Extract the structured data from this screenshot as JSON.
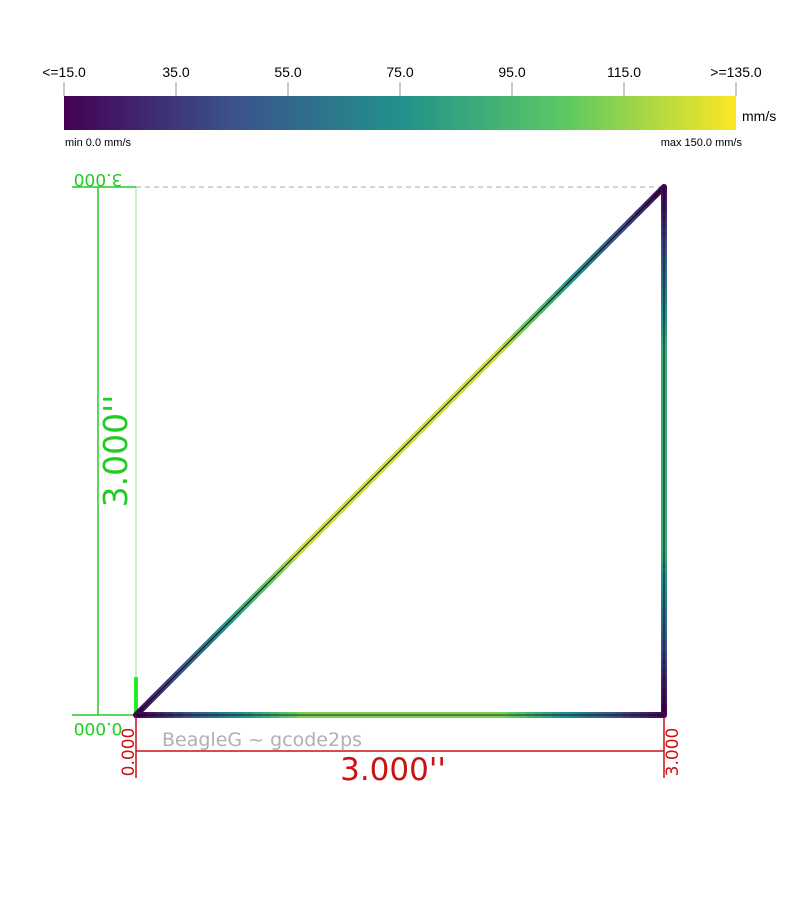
{
  "colorbar": {
    "tick_labels": [
      "<=15.0",
      "35.0",
      "55.0",
      "75.0",
      "95.0",
      "115.0",
      ">=135.0"
    ],
    "unit": "mm/s",
    "min_label": "min 0.0 mm/s",
    "max_label": "max 150.0 mm/s",
    "colors": [
      "#440154",
      "#3b528b",
      "#21918c",
      "#5ec962",
      "#fde725"
    ]
  },
  "dimensions": {
    "x": {
      "start": "0.000",
      "end": "3.000",
      "length": "3.000''",
      "color": "#cc1111"
    },
    "y": {
      "start": "0.000",
      "end": "3.000",
      "length": "3.000''",
      "color": "#22cc22"
    }
  },
  "watermark": "BeagleG ~ gcode2ps",
  "toolpath": {
    "units": "inch",
    "points": [
      [
        0,
        0
      ],
      [
        3,
        3
      ],
      [
        3,
        0
      ],
      [
        0,
        0
      ]
    ],
    "max_speed_fraction": [
      0.92,
      0.62,
      0.8
    ]
  }
}
